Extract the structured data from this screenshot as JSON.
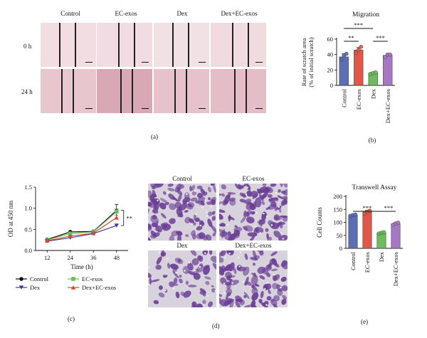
{
  "panel_a": {
    "columns": [
      "Control",
      "EC-exos",
      "Dex",
      "Dex+EC-exos"
    ],
    "rows": [
      "0 h",
      "24 h"
    ],
    "caption": "(a)",
    "tints": {
      "0 h": [
        "#f2dde3",
        "#f0dce2",
        "#f1e0e4",
        "#f0dbe1"
      ],
      "24 h": [
        "#e8c6cd",
        "#d8a9b4",
        "#e6c3cc",
        "#e4bdc7"
      ]
    }
  },
  "panel_d": {
    "labels": [
      "Control",
      "EC-exos",
      "Dex",
      "Dex+EC-exos"
    ],
    "caption": "(d)",
    "cell_color": "#6b3f95",
    "background_color": "#d7d2dc",
    "density": [
      0.85,
      0.9,
      0.45,
      0.75
    ]
  },
  "captions": {
    "b": "(b)",
    "c": "(c)",
    "e": "(e)"
  },
  "colors": {
    "control": "#5b6fb5",
    "ec_exos": "#e0584a",
    "dex": "#6cbc5e",
    "dex_ec": "#a678c3"
  },
  "chart_data": [
    {
      "id": "b",
      "type": "bar",
      "title": "Migration",
      "ylabel_lines": [
        "Rate of scratch area",
        "(% of initial scratch)"
      ],
      "categories": [
        "Control",
        "EC-exos",
        "Dex",
        "Dex+EC-exos"
      ],
      "values": [
        37,
        46,
        16,
        39
      ],
      "errors": [
        4,
        3,
        1,
        2
      ],
      "points": [
        [
          33,
          39,
          41
        ],
        [
          42,
          46,
          50
        ],
        [
          15,
          16,
          17
        ],
        [
          37,
          40,
          40
        ]
      ],
      "ylim": [
        0,
        60
      ],
      "yticks": [
        0,
        20,
        40,
        60
      ],
      "significance": [
        {
          "from": 0,
          "to": 1,
          "label": "**",
          "level": 0
        },
        {
          "from": 2,
          "to": 3,
          "label": "***",
          "level": 0
        },
        {
          "from": 0,
          "to": 2,
          "label": "***",
          "level": 1
        }
      ]
    },
    {
      "id": "c",
      "type": "line",
      "xlabel": "Time (h)",
      "ylabel": "OD at 450 nm",
      "x": [
        12,
        24,
        36,
        48
      ],
      "xlim": [
        6,
        54
      ],
      "ylim": [
        0,
        1.5
      ],
      "yticks": [
        0.0,
        0.5,
        1.0,
        1.5
      ],
      "ytick_labels": [
        "0.0",
        "0.5",
        "1.0",
        "1.5"
      ],
      "series": [
        {
          "name": "Control",
          "values": [
            0.26,
            0.44,
            0.45,
            0.95
          ],
          "err": [
            0.02,
            0.02,
            0.03,
            0.14
          ],
          "marker": "circle",
          "color": "#111111"
        },
        {
          "name": "EC-exos",
          "values": [
            0.25,
            0.4,
            0.44,
            0.92
          ],
          "err": [
            0.02,
            0.02,
            0.03,
            0.06
          ],
          "marker": "square",
          "color": "#6cbc5e"
        },
        {
          "name": "Dex",
          "values": [
            0.22,
            0.3,
            0.4,
            0.59
          ],
          "err": [
            0.02,
            0.02,
            0.02,
            0.03
          ],
          "marker": "triangle-down",
          "color": "#3d3aa8"
        },
        {
          "name": "Dex+EC-exos",
          "values": [
            0.23,
            0.34,
            0.41,
            0.78
          ],
          "err": [
            0.02,
            0.02,
            0.02,
            0.05
          ],
          "marker": "triangle-up",
          "color": "#e0452d"
        }
      ],
      "significance": {
        "label": "**"
      },
      "legend_position": "bottom"
    },
    {
      "id": "e",
      "type": "bar",
      "title": "Transwell Assay",
      "ylabel": "Cell Counts",
      "categories": [
        "Control",
        "EC-exos",
        "Dex",
        "Dex+EC-exos"
      ],
      "values": [
        128,
        140,
        60,
        95
      ],
      "errors": [
        3,
        6,
        3,
        4
      ],
      "points": [
        [
          125,
          128,
          130
        ],
        [
          134,
          141,
          145
        ],
        [
          57,
          60,
          62
        ],
        [
          91,
          96,
          99
        ]
      ],
      "ylim": [
        0,
        200
      ],
      "yticks": [
        0,
        50,
        100,
        150,
        200
      ],
      "significance": [
        {
          "from": 0,
          "to": 2,
          "label": "***",
          "level": 0
        },
        {
          "from": 2,
          "to": 3,
          "label": "***",
          "level": 0
        }
      ]
    }
  ]
}
